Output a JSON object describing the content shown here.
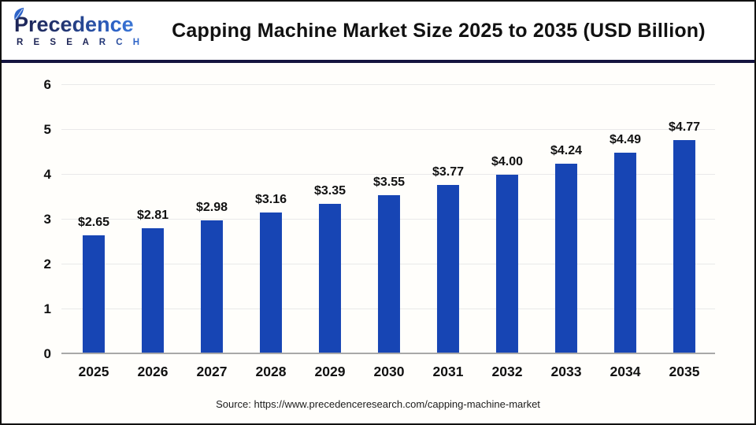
{
  "logo": {
    "name": "Precedence",
    "subname": "R E S E A R C H"
  },
  "header": {
    "title": "Capping Machine Market Size 2025 to 2035 (USD Billion)"
  },
  "footer": {
    "source": "Source: https://www.precedenceresearch.com/capping-machine-market"
  },
  "colors": {
    "bar": "#1745b4",
    "divider": "#15153f",
    "gridline": "#e9e9e9",
    "baseline": "#a8a8a8",
    "logo_navy": "#1d2557",
    "logo_blue": "#4a8ae0"
  },
  "chart_data": {
    "type": "bar",
    "title": "Capping Machine Market Size 2025 to 2035 (USD Billion)",
    "categories": [
      "2025",
      "2026",
      "2027",
      "2028",
      "2029",
      "2030",
      "2031",
      "2032",
      "2033",
      "2034",
      "2035"
    ],
    "values": [
      2.65,
      2.81,
      2.98,
      3.16,
      3.35,
      3.55,
      3.77,
      4.0,
      4.24,
      4.49,
      4.77
    ],
    "bar_labels": [
      "$2.65",
      "$2.81",
      "$2.98",
      "$3.16",
      "$3.35",
      "$3.55",
      "$3.77",
      "$4.00",
      "$4.24",
      "$4.49",
      "$4.77"
    ],
    "xlabel": "",
    "ylabel": "",
    "ylim": [
      0,
      6
    ],
    "yticks": [
      0,
      1,
      2,
      3,
      4,
      5,
      6
    ],
    "grid": true,
    "legend": "none",
    "bar_color": "#1745b4"
  }
}
